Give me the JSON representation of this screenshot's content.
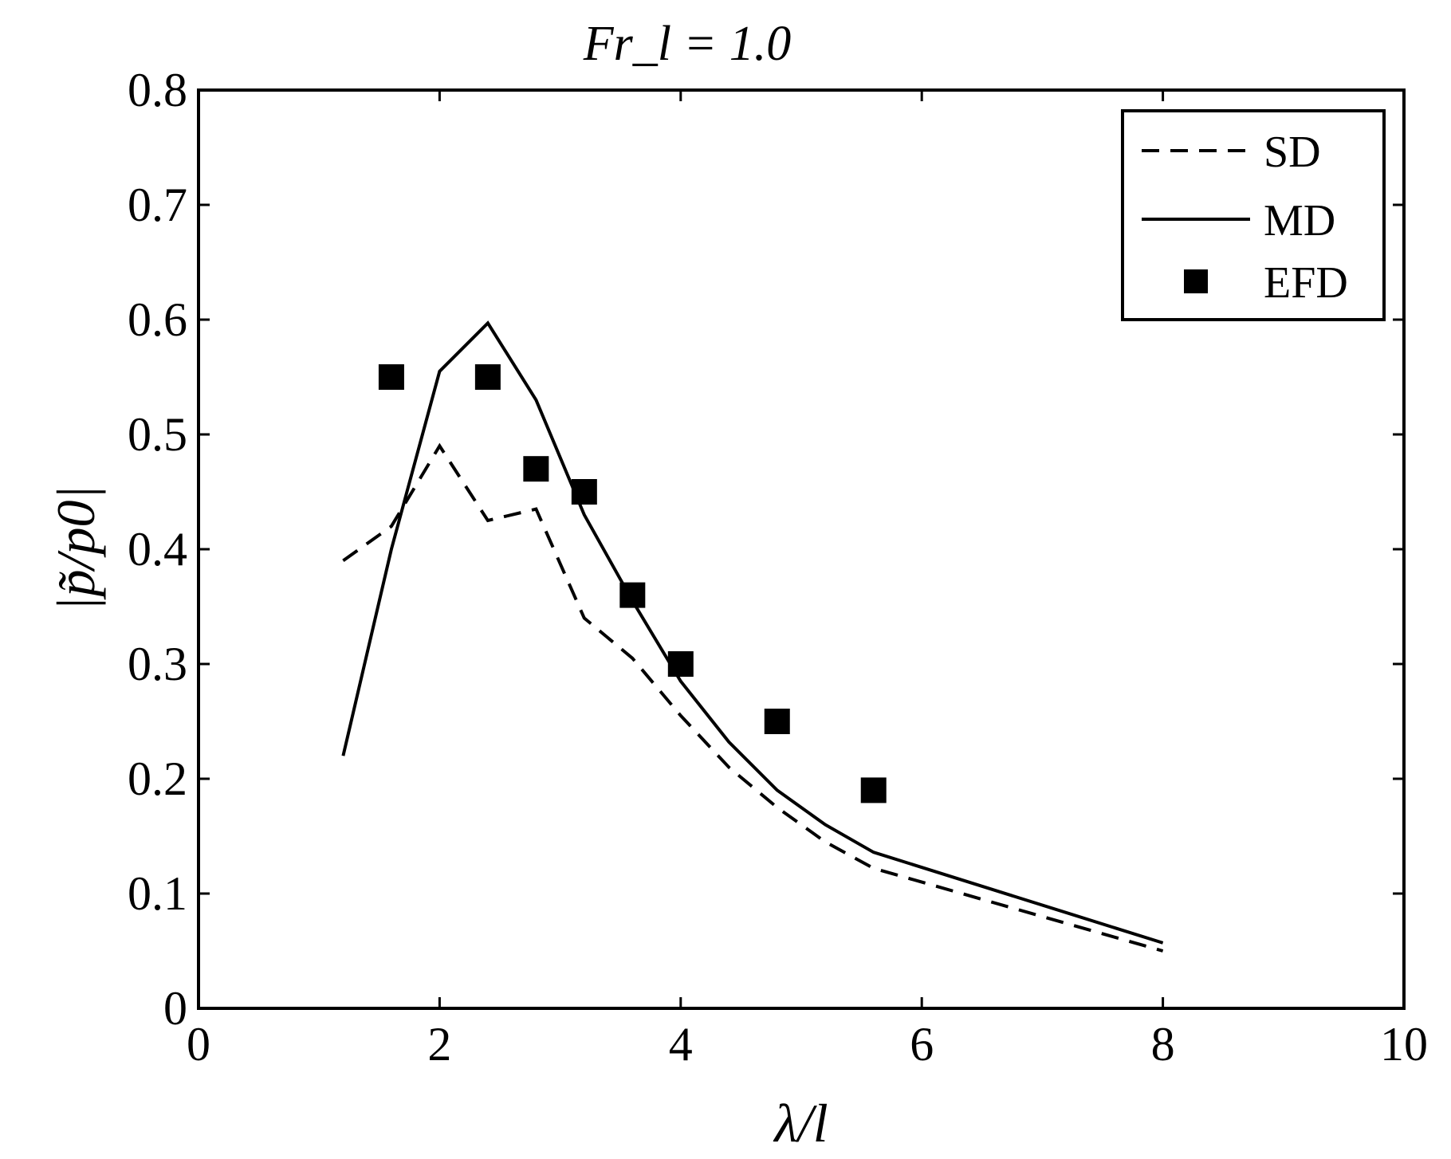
{
  "chart_data": {
    "type": "line",
    "title": "Fr_l = 1.0",
    "xlabel": "λ/l",
    "ylabel": "|p̃/p0|",
    "xlim": [
      0,
      10
    ],
    "ylim": [
      0,
      0.8
    ],
    "xticks": [
      0,
      2,
      4,
      6,
      8,
      10
    ],
    "yticks": [
      0,
      0.1,
      0.2,
      0.3,
      0.4,
      0.5,
      0.6,
      0.7,
      0.8
    ],
    "xtick_labels": [
      "0",
      "2",
      "4",
      "6",
      "8",
      "10"
    ],
    "ytick_labels": [
      "0",
      "0.1",
      "0.2",
      "0.3",
      "0.4",
      "0.5",
      "0.6",
      "0.7",
      "0.8"
    ],
    "grid": false,
    "legend_position": "top-right",
    "series": [
      {
        "name": "SD",
        "style": "dashed",
        "color": "#000000",
        "x": [
          1.2,
          1.6,
          2.0,
          2.4,
          2.8,
          3.2,
          3.6,
          4.0,
          4.4,
          4.8,
          5.2,
          5.6,
          6.0,
          8.0
        ],
        "y": [
          0.39,
          0.42,
          0.49,
          0.425,
          0.435,
          0.34,
          0.305,
          0.255,
          0.21,
          0.175,
          0.145,
          0.122,
          0.11,
          0.05
        ]
      },
      {
        "name": "MD",
        "style": "solid",
        "color": "#000000",
        "x": [
          1.2,
          1.6,
          2.0,
          2.4,
          2.8,
          3.2,
          3.6,
          4.0,
          4.4,
          4.8,
          5.2,
          5.6,
          8.0
        ],
        "y": [
          0.22,
          0.4,
          0.555,
          0.597,
          0.53,
          0.43,
          0.355,
          0.285,
          0.232,
          0.19,
          0.16,
          0.136,
          0.057
        ]
      },
      {
        "name": "EFD",
        "style": "markers",
        "marker": "square",
        "color": "#000000",
        "x": [
          1.6,
          2.4,
          2.8,
          3.2,
          3.6,
          4.0,
          4.8,
          5.6
        ],
        "y": [
          0.55,
          0.55,
          0.47,
          0.45,
          0.36,
          0.3,
          0.25,
          0.19
        ]
      }
    ]
  }
}
